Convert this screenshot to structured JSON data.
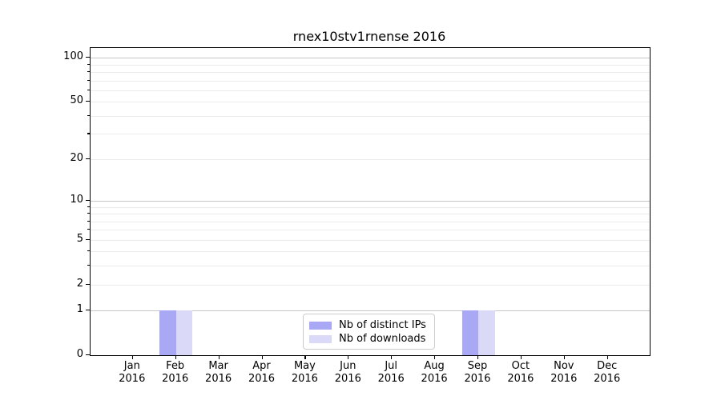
{
  "window": {
    "background": "#ffffff"
  },
  "chart_data": {
    "type": "bar",
    "title": "rnex10stv1rnense 2016",
    "categories": [
      "Jan 2016",
      "Feb 2016",
      "Mar 2016",
      "Apr 2016",
      "May 2016",
      "Jun 2016",
      "Jul 2016",
      "Aug 2016",
      "Sep 2016",
      "Oct 2016",
      "Nov 2016",
      "Dec 2016"
    ],
    "series": [
      {
        "name": "Nb of distinct IPs",
        "color": "#a8a8f5",
        "values": [
          0,
          1,
          0,
          0,
          0,
          0,
          0,
          0,
          1,
          0,
          0,
          0
        ]
      },
      {
        "name": "Nb of downloads",
        "color": "#dadaf8",
        "values": [
          0,
          1,
          0,
          0,
          0,
          0,
          0,
          0,
          1,
          0,
          0,
          0
        ]
      }
    ],
    "xlabel": "",
    "ylabel": "",
    "yscale": "log1p",
    "ylim": [
      0,
      118
    ],
    "y_labeled_ticks": [
      0,
      1,
      2,
      5,
      10,
      20,
      50,
      100
    ],
    "y_minor_ticks": [
      3,
      4,
      6,
      7,
      8,
      9,
      30,
      40,
      60,
      70,
      80,
      90
    ],
    "y_major_gridlines": [
      1,
      10,
      100
    ],
    "grid": "horizontal",
    "legend_position": "lower center"
  },
  "colors": {
    "grid_minor": "#ebebeb",
    "grid_major": "#c6c6c6",
    "axis": "#000000",
    "legend_border": "#cccccc",
    "text": "#000000"
  }
}
